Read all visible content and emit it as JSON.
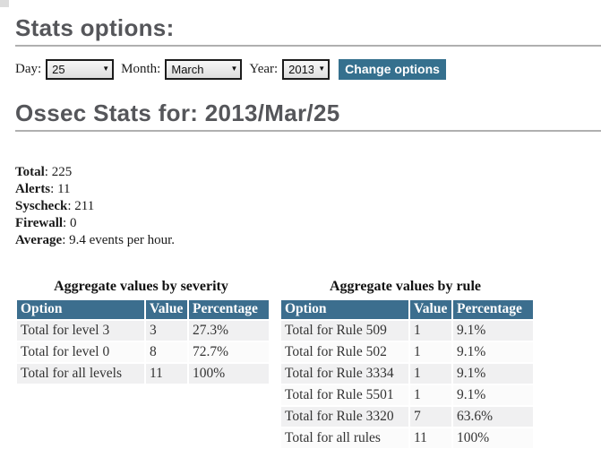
{
  "stats_options": {
    "title": "Stats options:",
    "form": {
      "day_label": "Day:",
      "day_value": "25",
      "month_label": "Month:",
      "month_value": "March",
      "year_label": "Year:",
      "year_value": "2013",
      "submit_label": "Change options"
    }
  },
  "stats_header": {
    "title": "Ossec Stats for: 2013/Mar/25"
  },
  "summary": {
    "items": [
      {
        "label": "Total",
        "value": "225"
      },
      {
        "label": "Alerts",
        "value": "11"
      },
      {
        "label": "Syscheck",
        "value": "211"
      },
      {
        "label": "Firewall",
        "value": "0"
      },
      {
        "label": "Average",
        "value": "9.4 events per hour."
      }
    ]
  },
  "severity_table": {
    "title": "Aggregate values by severity",
    "headers": [
      "Option",
      "Value",
      "Percentage"
    ],
    "rows": [
      [
        "Total for level 3",
        "3",
        "27.3%"
      ],
      [
        "Total for level 0",
        "8",
        "72.7%"
      ],
      [
        "Total for all levels",
        "11",
        "100%"
      ]
    ]
  },
  "rule_table": {
    "title": "Aggregate values by rule",
    "headers": [
      "Option",
      "Value",
      "Percentage"
    ],
    "rows": [
      [
        "Total for Rule 509",
        "1",
        "9.1%"
      ],
      [
        "Total for Rule 502",
        "1",
        "9.1%"
      ],
      [
        "Total for Rule 3334",
        "1",
        "9.1%"
      ],
      [
        "Total for Rule 5501",
        "1",
        "9.1%"
      ],
      [
        "Total for Rule 3320",
        "7",
        "63.6%"
      ],
      [
        "Total for all rules",
        "11",
        "100%"
      ]
    ]
  },
  "colors": {
    "header_bg": "#3c6e8e",
    "button_bg": "#35708e",
    "heading_text": "#55565a",
    "row_odd": "#f0f0f1",
    "row_even": "#fbfbfb",
    "rule_color": "#b0b0b0"
  }
}
